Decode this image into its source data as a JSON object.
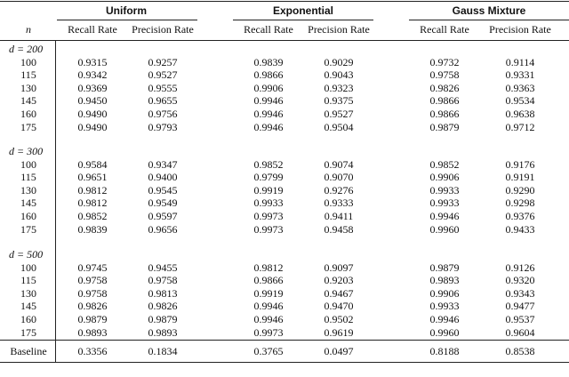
{
  "table": {
    "groups": [
      "Uniform",
      "Exponential",
      "Gauss Mixture"
    ],
    "columns": [
      "n",
      "Recall Rate",
      "Precision Rate",
      "Recall Rate",
      "Precision Rate",
      "Recall Rate",
      "Precision Rate"
    ],
    "sections": [
      {
        "label": "d = 200",
        "rows": [
          [
            "100",
            "0.9315",
            "0.9257",
            "0.9839",
            "0.9029",
            "0.9732",
            "0.9114"
          ],
          [
            "115",
            "0.9342",
            "0.9527",
            "0.9866",
            "0.9043",
            "0.9758",
            "0.9331"
          ],
          [
            "130",
            "0.9369",
            "0.9555",
            "0.9906",
            "0.9323",
            "0.9826",
            "0.9363"
          ],
          [
            "145",
            "0.9450",
            "0.9655",
            "0.9946",
            "0.9375",
            "0.9866",
            "0.9534"
          ],
          [
            "160",
            "0.9490",
            "0.9756",
            "0.9946",
            "0.9527",
            "0.9866",
            "0.9638"
          ],
          [
            "175",
            "0.9490",
            "0.9793",
            "0.9946",
            "0.9504",
            "0.9879",
            "0.9712"
          ]
        ]
      },
      {
        "label": "d = 300",
        "rows": [
          [
            "100",
            "0.9584",
            "0.9347",
            "0.9852",
            "0.9074",
            "0.9852",
            "0.9176"
          ],
          [
            "115",
            "0.9651",
            "0.9400",
            "0.9799",
            "0.9070",
            "0.9906",
            "0.9191"
          ],
          [
            "130",
            "0.9812",
            "0.9545",
            "0.9919",
            "0.9276",
            "0.9933",
            "0.9290"
          ],
          [
            "145",
            "0.9812",
            "0.9549",
            "0.9933",
            "0.9333",
            "0.9933",
            "0.9298"
          ],
          [
            "160",
            "0.9852",
            "0.9597",
            "0.9973",
            "0.9411",
            "0.9946",
            "0.9376"
          ],
          [
            "175",
            "0.9839",
            "0.9656",
            "0.9973",
            "0.9458",
            "0.9960",
            "0.9433"
          ]
        ]
      },
      {
        "label": "d = 500",
        "rows": [
          [
            "100",
            "0.9745",
            "0.9455",
            "0.9812",
            "0.9097",
            "0.9879",
            "0.9126"
          ],
          [
            "115",
            "0.9758",
            "0.9758",
            "0.9866",
            "0.9203",
            "0.9893",
            "0.9320"
          ],
          [
            "130",
            "0.9758",
            "0.9813",
            "0.9919",
            "0.9467",
            "0.9906",
            "0.9343"
          ],
          [
            "145",
            "0.9826",
            "0.9826",
            "0.9946",
            "0.9470",
            "0.9933",
            "0.9477"
          ],
          [
            "160",
            "0.9879",
            "0.9879",
            "0.9946",
            "0.9502",
            "0.9946",
            "0.9537"
          ],
          [
            "175",
            "0.9893",
            "0.9893",
            "0.9973",
            "0.9619",
            "0.9960",
            "0.9604"
          ]
        ]
      }
    ],
    "baseline": [
      "Baseline",
      "0.3356",
      "0.1834",
      "0.3765",
      "0.0497",
      "0.8188",
      "0.8538"
    ]
  }
}
